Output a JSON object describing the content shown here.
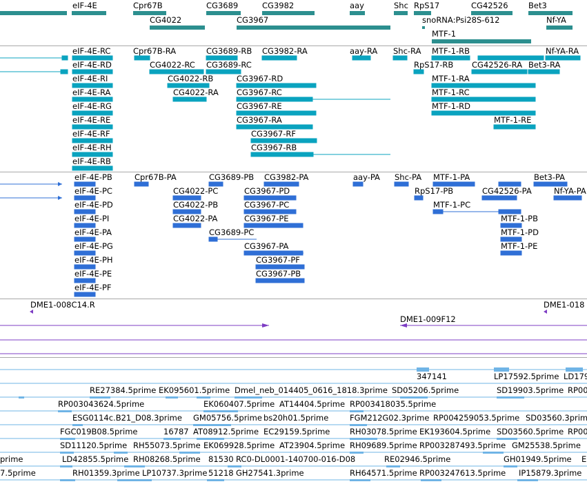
{
  "colors": {
    "gene": "#2c8f8f",
    "transcript_rna": "#0aa3bf",
    "protein": "#2f6fd6",
    "clone": "#7d3cc4",
    "est": "#6fb4e6",
    "separator": "#a8a8a8"
  },
  "gene_track": {
    "labels": [
      "eIF-4E",
      "Cpr67B",
      "CG3689",
      "CG3982",
      "aay",
      "Shc",
      "RpS17",
      "CG42526",
      "Bet3",
      "CG4022",
      "CG3967",
      "snoRNA:Psi28S-612",
      "Nf-YA",
      "MTF-1"
    ]
  },
  "rna_track": {
    "labels": [
      "eIF-4E-RC",
      "Cpr67B-RA",
      "CG3689-RB",
      "CG3982-RA",
      "aay-RA",
      "Shc-RA",
      "MTF-1-RB",
      "Nf-YA-RA",
      "eIF-4E-RD",
      "CG4022-RC",
      "CG3689-RC",
      "RpS17-RB",
      "CG42526-RA",
      "Bet3-RA",
      "eIF-4E-RI",
      "CG4022-RB",
      "CG3967-RD",
      "MTF-1-RA",
      "eIF-4E-RA",
      "CG4022-RA",
      "CG3967-RC",
      "MTF-1-RC",
      "eIF-4E-RG",
      "CG3967-RE",
      "MTF-1-RD",
      "eIF-4E-RE",
      "CG3967-RA",
      "MTF-1-RE",
      "eIF-4E-RF",
      "CG3967-RF",
      "eIF-4E-RH",
      "CG3967-RB",
      "eIF-4E-RB"
    ]
  },
  "protein_track": {
    "labels": [
      "eIF-4E-PB",
      "Cpr67B-PA",
      "CG3689-PB",
      "CG3982-PA",
      "aay-PA",
      "Shc-PA",
      "MTF-1-PA",
      "Bet3-PA",
      "eIF-4E-PC",
      "CG4022-PC",
      "CG3967-PD",
      "RpS17-PB",
      "CG42526-PA",
      "Nf-YA-PA",
      "eIF-4E-PD",
      "CG4022-PB",
      "CG3967-PC",
      "MTF-1-PC",
      "eIF-4E-PI",
      "CG4022-PA",
      "CG3967-PE",
      "MTF-1-PB",
      "eIF-4E-PA",
      "CG3689-PC",
      "MTF-1-PD",
      "eIF-4E-PG",
      "CG3967-PA",
      "MTF-1-PE",
      "eIF-4E-PH",
      "CG3967-PF",
      "eIF-4E-PE",
      "CG3967-PB",
      "eIF-4E-PF"
    ]
  },
  "clone_track": {
    "labels": [
      "DME1-008C14.R",
      "DME1-018",
      "DME1-009F12"
    ]
  },
  "est_track": {
    "labels": [
      "347141",
      "LP17592.5prime",
      "LD179",
      "RE27384.5prime",
      "EK095601.5prime",
      "Dmel_neb_014405_0616_1818.3prime",
      "SD05206.5prime",
      "SD19903.5prime",
      "RP00",
      "RP003043624.5prime",
      "EK060407.5prime",
      "AT14404.5prime",
      "RP003418035.5prime",
      "ESG0114c.B21_D08.3prime",
      "GM05756.5prime",
      "bs20h01.5prime",
      "FGM212G02.3prime",
      "RP004259053.5prime",
      "SD03560.3prime",
      "FGC019B08.5prime",
      "16787",
      "AT08912.5prime",
      "EC29159.5prime",
      "RH03078.5prime",
      "EK193604.5prime",
      "SD03560.5prime",
      "RP00",
      "SD11120.5prime",
      "RH55073.5prime",
      "EK069928.5prime",
      "AT23904.5prime",
      "RH09689.5prime",
      "RP003287493.5prime",
      "GM25538.5prime",
      "prime",
      "LD42855.5prime",
      "RH08268.5prime",
      "81530",
      "RC0-DL0001-140700-016-D08",
      "RE02946.5prime",
      "GH01949.5prime",
      "E",
      "7.5prime",
      "RH01359.3prime",
      "LP10737.3prime",
      "51218",
      "GH27541.3prime",
      "RH64571.5prime",
      "RP003247613.5prime",
      "IP15879.3prime"
    ]
  }
}
